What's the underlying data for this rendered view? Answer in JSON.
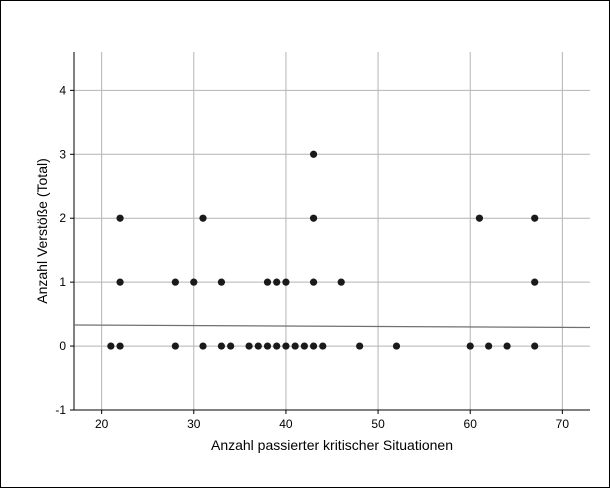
{
  "chart_data": {
    "type": "scatter",
    "title": "",
    "xlabel": "Anzahl passierter kritischer Situationen",
    "ylabel": "Anzahl Verstöße (Total)",
    "xlim": [
      17,
      73
    ],
    "ylim": [
      -1,
      4.6
    ],
    "xticks": [
      20,
      30,
      40,
      50,
      60,
      70
    ],
    "yticks": [
      -1,
      0,
      1,
      2,
      3,
      4
    ],
    "grid": true,
    "legend": "none",
    "colors": {
      "points": "#1a1a1a",
      "grid": "#b4b4b4",
      "fit_line": "#707070",
      "frame": "#000000"
    },
    "points": [
      {
        "x": 21,
        "y": 0
      },
      {
        "x": 22,
        "y": 0
      },
      {
        "x": 28,
        "y": 0
      },
      {
        "x": 31,
        "y": 0
      },
      {
        "x": 33,
        "y": 0
      },
      {
        "x": 34,
        "y": 0
      },
      {
        "x": 36,
        "y": 0
      },
      {
        "x": 37,
        "y": 0
      },
      {
        "x": 38,
        "y": 0
      },
      {
        "x": 39,
        "y": 0
      },
      {
        "x": 40,
        "y": 0
      },
      {
        "x": 41,
        "y": 0
      },
      {
        "x": 42,
        "y": 0
      },
      {
        "x": 43,
        "y": 0
      },
      {
        "x": 44,
        "y": 0
      },
      {
        "x": 48,
        "y": 0
      },
      {
        "x": 52,
        "y": 0
      },
      {
        "x": 60,
        "y": 0
      },
      {
        "x": 62,
        "y": 0
      },
      {
        "x": 64,
        "y": 0
      },
      {
        "x": 67,
        "y": 0
      },
      {
        "x": 22,
        "y": 1
      },
      {
        "x": 28,
        "y": 1
      },
      {
        "x": 30,
        "y": 1
      },
      {
        "x": 33,
        "y": 1
      },
      {
        "x": 38,
        "y": 1
      },
      {
        "x": 39,
        "y": 1
      },
      {
        "x": 40,
        "y": 1
      },
      {
        "x": 43,
        "y": 1
      },
      {
        "x": 46,
        "y": 1
      },
      {
        "x": 67,
        "y": 1
      },
      {
        "x": 22,
        "y": 2
      },
      {
        "x": 31,
        "y": 2
      },
      {
        "x": 43,
        "y": 2
      },
      {
        "x": 61,
        "y": 2
      },
      {
        "x": 67,
        "y": 2
      },
      {
        "x": 43,
        "y": 3
      }
    ],
    "fit_line": {
      "x": [
        17,
        73
      ],
      "y": [
        0.33,
        0.29
      ]
    }
  }
}
